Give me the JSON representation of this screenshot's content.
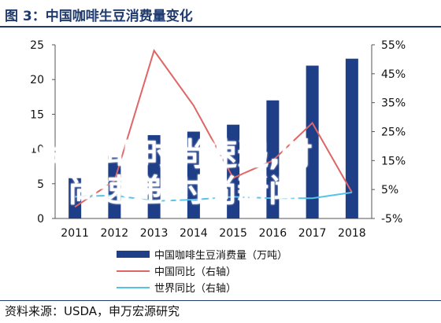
{
  "title": "图 3：中国咖啡生豆消费量变化",
  "source": "资料来源：USDA，申万宏源研究",
  "watermark": [
    "时尚新闻,时尚速递,时",
    "尚速递,时尚新闻"
  ],
  "colors": {
    "bar": "#1f3e88",
    "china_yoy": "#e06666",
    "world_yoy": "#56c2e8",
    "title": "#1f3a6e"
  },
  "chart_data": {
    "type": "bar",
    "categories": [
      "2011",
      "2012",
      "2013",
      "2014",
      "2015",
      "2016",
      "2017",
      "2018"
    ],
    "y_left": {
      "lim": [
        0,
        25
      ],
      "ticks": [
        "0",
        "5",
        "10",
        "15",
        "20",
        "25"
      ]
    },
    "y_right": {
      "lim": [
        -5,
        55
      ],
      "ticks": [
        "-5%",
        "5%",
        "15%",
        "25%",
        "35%",
        "45%",
        "55%"
      ]
    },
    "series": [
      {
        "name": "中国咖啡生豆消费量（万吨）",
        "type": "bar",
        "axis": "left",
        "values": [
          5.8,
          9.0,
          12.0,
          12.5,
          13.5,
          17.0,
          22.0,
          23.0
        ]
      },
      {
        "name": "中国同比（右轴）",
        "type": "line",
        "axis": "right",
        "values": [
          -1.0,
          8.0,
          53.0,
          34.0,
          9.0,
          15.0,
          28.0,
          4.0
        ]
      },
      {
        "name": "世界同比（右轴）",
        "type": "line",
        "axis": "right",
        "values": [
          2.5,
          3.0,
          1.0,
          1.5,
          2.5,
          2.0,
          2.0,
          4.0
        ]
      }
    ],
    "legend": [
      "中国咖啡生豆消费量（万吨）",
      "中国同比（右轴）",
      "世界同比（右轴）"
    ],
    "legend_position": "bottom",
    "grid": false
  }
}
